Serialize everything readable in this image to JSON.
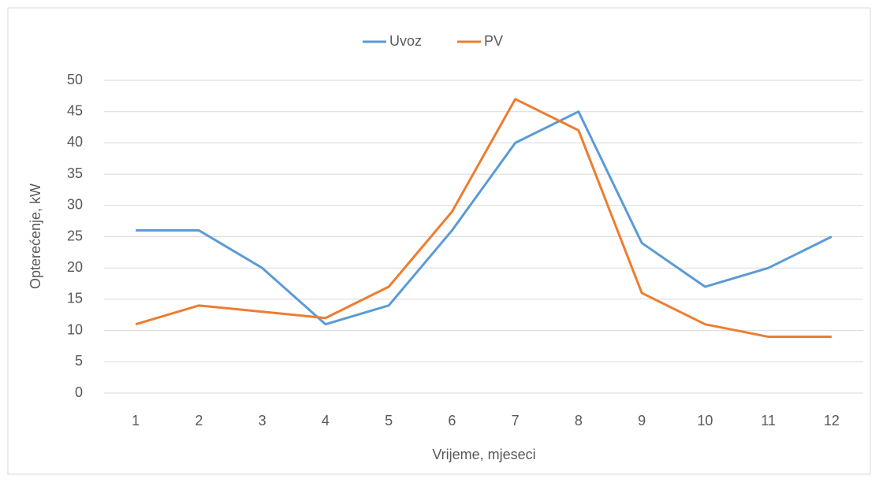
{
  "chart_data": {
    "type": "line",
    "x_label": "Vrijeme, mjeseci",
    "y_label": "Opterećenje, kW",
    "categories": [
      "1",
      "2",
      "3",
      "4",
      "5",
      "6",
      "7",
      "8",
      "9",
      "10",
      "11",
      "12"
    ],
    "series": [
      {
        "name": "Uvoz",
        "color": "#5b9bd5",
        "values": [
          26,
          26,
          20,
          11,
          14,
          26,
          40,
          45,
          24,
          17,
          20,
          25
        ]
      },
      {
        "name": "PV",
        "color": "#ed7d31",
        "values": [
          11,
          14,
          13,
          12,
          17,
          29,
          47,
          42,
          16,
          11,
          9,
          9
        ]
      }
    ],
    "ylim": [
      0,
      50
    ],
    "yticks": [
      0,
      5,
      10,
      15,
      20,
      25,
      30,
      35,
      40,
      45,
      50
    ],
    "grid": true,
    "legend": "top"
  }
}
